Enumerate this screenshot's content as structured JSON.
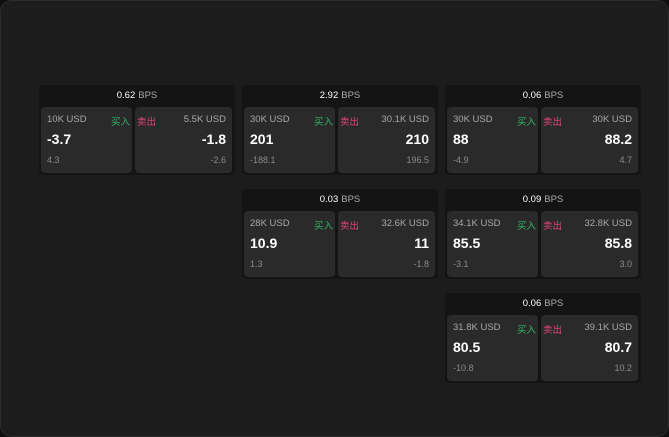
{
  "unit": "BPS",
  "buy_label": "买入",
  "sell_label": "卖出",
  "colors": {
    "buy": "#2fb566",
    "sell": "#e0457b",
    "background": "#1c1c1c"
  },
  "panels": [
    {
      "spread": "0.62",
      "buy": {
        "size": "10K USD",
        "price": "-3.7",
        "change": "4.3"
      },
      "sell": {
        "size": "5.5K USD",
        "price": "-1.8",
        "change": "-2.6"
      }
    },
    {
      "spread": "2.92",
      "buy": {
        "size": "30K USD",
        "price": "201",
        "change": "-188.1"
      },
      "sell": {
        "size": "30.1K USD",
        "price": "210",
        "change": "196.5"
      }
    },
    {
      "spread": "0.06",
      "buy": {
        "size": "30K USD",
        "price": "88",
        "change": "-4.9"
      },
      "sell": {
        "size": "30K USD",
        "price": "88.2",
        "change": "4.7"
      }
    },
    {
      "spread": "0.03",
      "buy": {
        "size": "28K USD",
        "price": "10.9",
        "change": "1.3"
      },
      "sell": {
        "size": "32.6K USD",
        "price": "11",
        "change": "-1.8"
      }
    },
    {
      "spread": "0.09",
      "buy": {
        "size": "34.1K USD",
        "price": "85.5",
        "change": "-3.1"
      },
      "sell": {
        "size": "32.8K USD",
        "price": "85.8",
        "change": "3.0"
      }
    },
    {
      "spread": "0.06",
      "buy": {
        "size": "31.8K USD",
        "price": "80.5",
        "change": "-10.8"
      },
      "sell": {
        "size": "39.1K USD",
        "price": "80.7",
        "change": "10.2"
      }
    }
  ]
}
